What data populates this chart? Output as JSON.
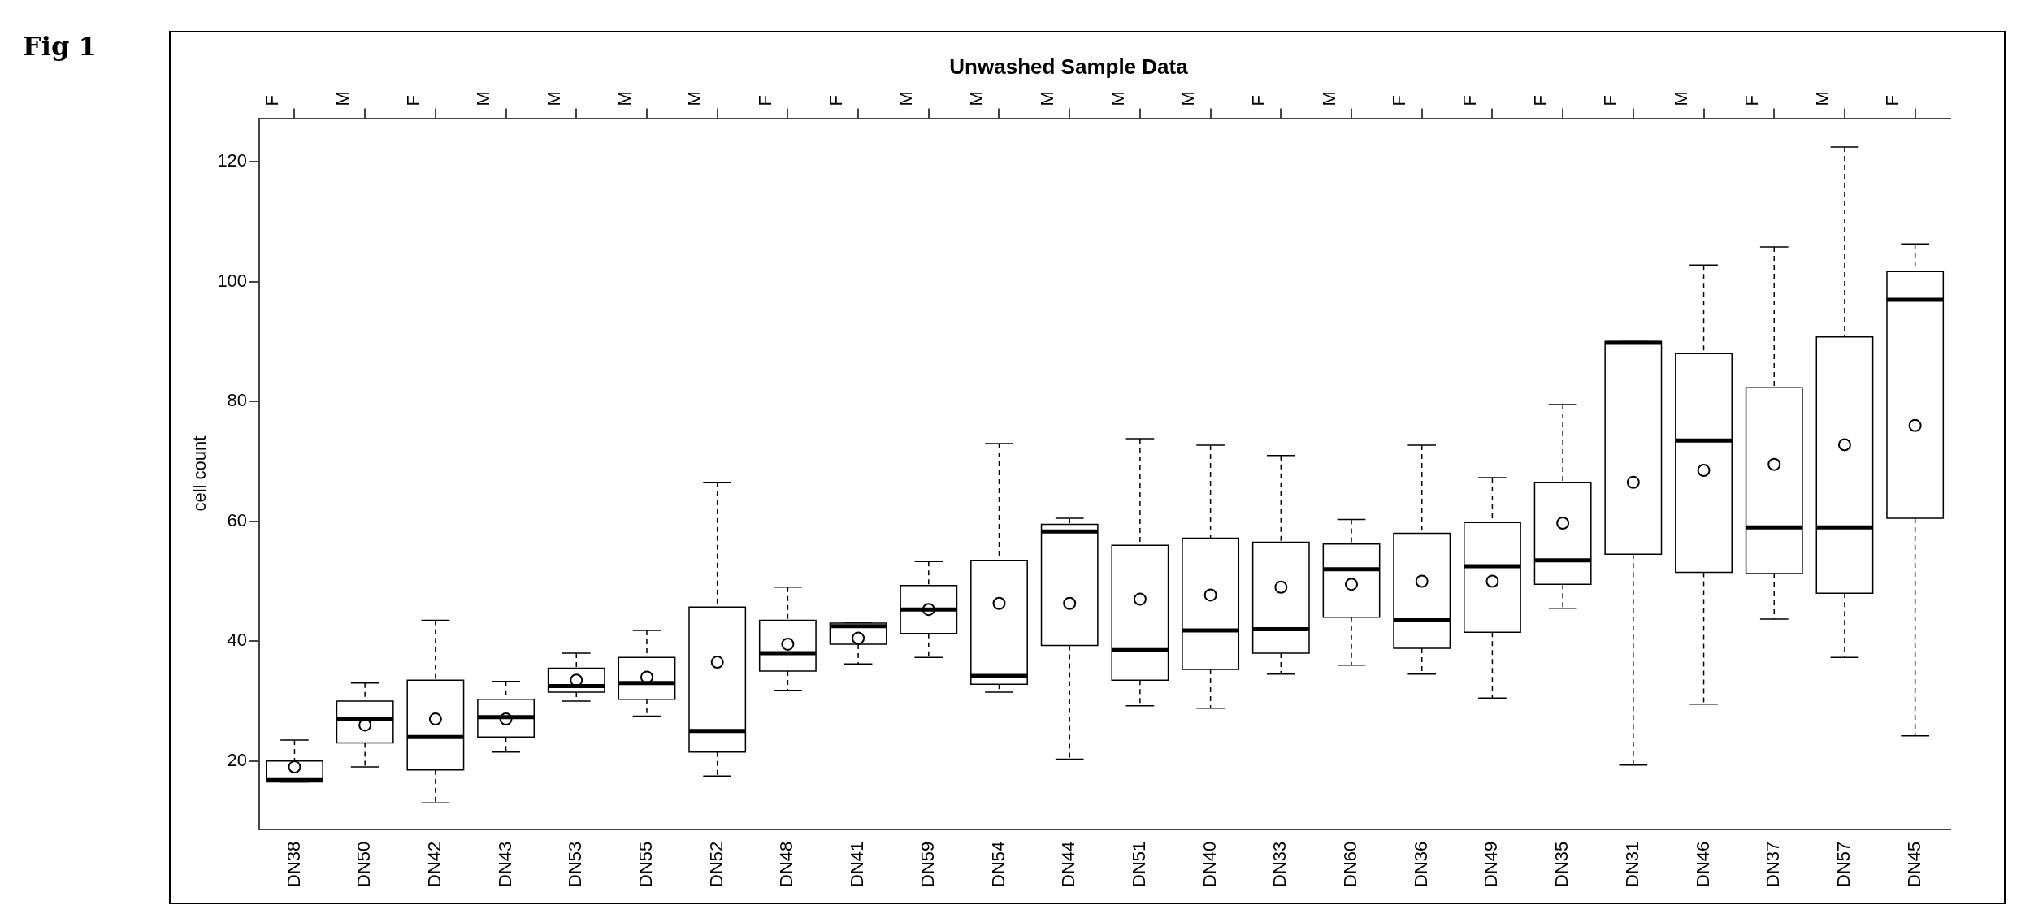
{
  "chart_data": {
    "type": "box",
    "title": "Unwashed Sample Data",
    "ylabel": "cell count",
    "categories": [
      "DN38",
      "DN50",
      "DN42",
      "DN43",
      "DN53",
      "DN55",
      "DN52",
      "DN48",
      "DN41",
      "DN59",
      "DN54",
      "DN44",
      "DN51",
      "DN40",
      "DN33",
      "DN60",
      "DN36",
      "DN49",
      "DN35",
      "DN31",
      "DN46",
      "DN37",
      "DN57",
      "DN45"
    ],
    "boxes": [
      {
        "low": 16.5,
        "q1": 16.5,
        "median": 16.8,
        "q3": 20,
        "high": 23.5,
        "mean": 19
      },
      {
        "low": 19,
        "q1": 23,
        "median": 27,
        "q3": 30,
        "high": 33,
        "mean": 26
      },
      {
        "low": 13,
        "q1": 18.5,
        "median": 24,
        "q3": 33.5,
        "high": 43.5,
        "mean": 27
      },
      {
        "low": 21.5,
        "q1": 24,
        "median": 27.3,
        "q3": 30.3,
        "high": 33.3,
        "mean": 27
      },
      {
        "low": 30,
        "q1": 31.5,
        "median": 32.5,
        "q3": 35.5,
        "high": 38,
        "mean": 33.5
      },
      {
        "low": 27.5,
        "q1": 30.3,
        "median": 33,
        "q3": 37.3,
        "high": 41.8,
        "mean": 34
      },
      {
        "low": 17.5,
        "q1": 21.5,
        "median": 25,
        "q3": 45.7,
        "high": 66.5,
        "mean": 36.5
      },
      {
        "low": 31.8,
        "q1": 35,
        "median": 38,
        "q3": 43.5,
        "high": 49,
        "mean": 39.5
      },
      {
        "low": 36.2,
        "q1": 39.5,
        "median": 42.5,
        "q3": 43,
        "high": 43,
        "mean": 40.5
      },
      {
        "low": 37.3,
        "q1": 41.3,
        "median": 45.3,
        "q3": 49.3,
        "high": 53.3,
        "mean": 45.3
      },
      {
        "low": 31.5,
        "q1": 32.8,
        "median": 34.2,
        "q3": 53.5,
        "high": 73,
        "mean": 46.3
      },
      {
        "low": 20.3,
        "q1": 39.3,
        "median": 58.3,
        "q3": 59.5,
        "high": 60.5,
        "mean": 46.3
      },
      {
        "low": 29.2,
        "q1": 33.5,
        "median": 38.5,
        "q3": 56,
        "high": 73.8,
        "mean": 47
      },
      {
        "low": 28.8,
        "q1": 35.3,
        "median": 41.8,
        "q3": 57.2,
        "high": 72.7,
        "mean": 47.7
      },
      {
        "low": 34.5,
        "q1": 38,
        "median": 42,
        "q3": 56.5,
        "high": 71,
        "mean": 49
      },
      {
        "low": 36,
        "q1": 44,
        "median": 52,
        "q3": 56.2,
        "high": 60.3,
        "mean": 49.5
      },
      {
        "low": 34.5,
        "q1": 38.8,
        "median": 43.5,
        "q3": 58,
        "high": 72.7,
        "mean": 50
      },
      {
        "low": 30.5,
        "q1": 41.5,
        "median": 52.5,
        "q3": 59.8,
        "high": 67.3,
        "mean": 50
      },
      {
        "low": 45.5,
        "q1": 49.5,
        "median": 53.5,
        "q3": 66.5,
        "high": 79.5,
        "mean": 59.7
      },
      {
        "low": 19.3,
        "q1": 54.5,
        "median": 89.8,
        "q3": 90,
        "high": 90,
        "mean": 66.5
      },
      {
        "low": 29.5,
        "q1": 51.5,
        "median": 73.5,
        "q3": 88,
        "high": 102.8,
        "mean": 68.5
      },
      {
        "low": 43.7,
        "q1": 51.3,
        "median": 59,
        "q3": 82.3,
        "high": 105.8,
        "mean": 69.5
      },
      {
        "low": 37.3,
        "q1": 48,
        "median": 59,
        "q3": 90.8,
        "high": 122.5,
        "mean": 72.8
      },
      {
        "low": 24.2,
        "q1": 60.5,
        "median": 97,
        "q3": 101.7,
        "high": 106.3,
        "mean": 76
      }
    ],
    "ylim": [
      8.6,
      127.3
    ],
    "yticks": [
      20,
      40,
      60,
      80,
      100,
      120
    ],
    "annotations": [
      "Fig 1",
      "F",
      "M",
      "F",
      "M",
      "M",
      "M",
      "M",
      "F",
      "F",
      "M",
      "M",
      "M",
      "M",
      "M",
      "F",
      "M",
      "F",
      "F",
      "F",
      "F",
      "M",
      "F",
      "M",
      "F"
    ],
    "grid": false,
    "legend": false
  }
}
